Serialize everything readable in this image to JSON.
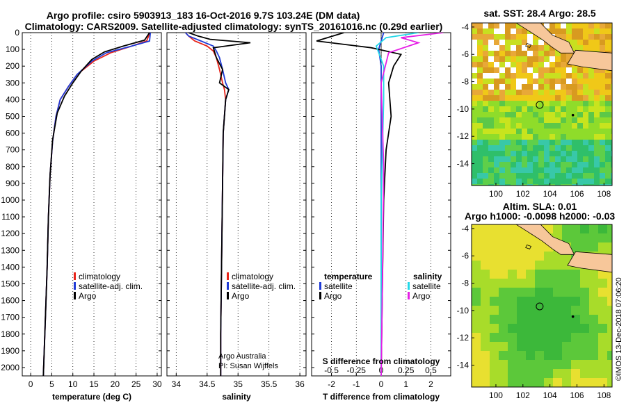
{
  "title_line1": "Argo profile: csiro 5903913_183 16-Oct-2016 9.7S 103.24E (DM data)",
  "title_line2": "Climatology: CARS2009. Satellite-adjusted climatology: synTS_20161016.nc (0.29d earlier)",
  "colors": {
    "climatology": "#e8241a",
    "satellite": "#1f3ad6",
    "argo": "#000000",
    "sal_satellite": "#22d8e8",
    "sal_argo": "#e61ee6"
  },
  "chart_data": [
    {
      "type": "line",
      "xlabel": "temperature (deg C)",
      "ylabel": "",
      "xlim": [
        -2,
        31
      ],
      "ylim": [
        2050,
        0
      ],
      "xticks": [
        0,
        5,
        10,
        15,
        20,
        25,
        30
      ],
      "yticks": [
        0,
        100,
        200,
        300,
        400,
        500,
        600,
        700,
        800,
        900,
        1000,
        1100,
        1200,
        1300,
        1400,
        1500,
        1600,
        1700,
        1800,
        1900,
        2000
      ],
      "legend": [
        "climatology",
        "satellite-adj. clim.",
        "Argo"
      ],
      "series": [
        {
          "name": "climatology",
          "x": [
            28.3,
            27.5,
            24,
            19,
            15,
            11,
            9,
            7,
            6,
            5.2,
            4.6,
            4.2,
            3.9,
            3.5,
            3.0
          ],
          "y": [
            0,
            50,
            80,
            120,
            170,
            250,
            320,
            400,
            500,
            650,
            850,
            1100,
            1400,
            1700,
            2050
          ]
        },
        {
          "name": "satellite-adj. clim.",
          "x": [
            28.4,
            28.2,
            24,
            18,
            14.5,
            11,
            9,
            7,
            6,
            5.2,
            4.6,
            4.2,
            3.9,
            3.5,
            3.0
          ],
          "y": [
            0,
            50,
            80,
            120,
            170,
            250,
            320,
            400,
            500,
            650,
            850,
            1100,
            1400,
            1700,
            2050
          ]
        },
        {
          "name": "Argo",
          "x": [
            28.2,
            27,
            22,
            17.5,
            14.5,
            12,
            10,
            8,
            6.3,
            5.2,
            4.6,
            4.2,
            3.9,
            3.5,
            3.0
          ],
          "y": [
            0,
            45,
            80,
            115,
            160,
            230,
            300,
            380,
            480,
            640,
            850,
            1100,
            1400,
            1700,
            2050
          ]
        }
      ]
    },
    {
      "type": "line",
      "xlabel": "salinity",
      "xlim": [
        33.85,
        36.1
      ],
      "ylim": [
        2050,
        0
      ],
      "xticks": [
        34,
        34.5,
        35,
        35.5,
        36
      ],
      "legend": [
        "climatology",
        "satellite-adj. clim.",
        "Argo"
      ],
      "annotation": [
        "Argo Australia",
        "PI: Susan Wijffels"
      ],
      "series": [
        {
          "name": "climatology",
          "x": [
            34.15,
            34.2,
            34.3,
            34.5,
            34.6,
            34.65,
            34.7,
            34.75,
            34.78,
            34.8,
            34.76,
            34.75,
            34.74,
            34.73,
            34.72,
            34.72
          ],
          "y": [
            0,
            20,
            50,
            80,
            110,
            150,
            220,
            300,
            340,
            400,
            600,
            900,
            1200,
            1500,
            1800,
            2050
          ]
        },
        {
          "name": "satellite-adj. clim.",
          "x": [
            34.15,
            34.2,
            34.4,
            34.6,
            34.65,
            34.7,
            34.75,
            34.8,
            34.85,
            34.8,
            34.76,
            34.75,
            34.74,
            34.73,
            34.72,
            34.72
          ],
          "y": [
            0,
            20,
            50,
            80,
            110,
            150,
            220,
            300,
            340,
            400,
            600,
            900,
            1200,
            1500,
            1800,
            2050
          ]
        },
        {
          "name": "Argo",
          "x": [
            34.2,
            34.35,
            34.55,
            35.2,
            34.6,
            34.65,
            34.75,
            34.7,
            34.85,
            34.8,
            34.76,
            34.75,
            34.74,
            34.73,
            34.72,
            34.72
          ],
          "y": [
            0,
            20,
            40,
            60,
            90,
            150,
            220,
            300,
            340,
            400,
            600,
            900,
            1200,
            1500,
            1800,
            2050
          ]
        }
      ]
    },
    {
      "type": "line",
      "xlabel": "T difference from climatology",
      "xlabel_top": "S difference from climatology",
      "xlim": [
        -2.8,
        2.8
      ],
      "ylim": [
        2050,
        0
      ],
      "xticks": [
        -2,
        -1,
        0,
        1,
        2
      ],
      "xticks_top": [
        "-0.5",
        "-0.25",
        "0",
        "0.25",
        "0.5"
      ],
      "legend_left": [
        "temperature",
        "satellite",
        "Argo"
      ],
      "legend_right": [
        "salinity",
        "satellite",
        "Argo"
      ],
      "series": [
        {
          "name": "temperature satellite",
          "x": [
            0.1,
            0,
            -0.1,
            0,
            0,
            0,
            0,
            0,
            0
          ],
          "y": [
            0,
            50,
            100,
            200,
            400,
            800,
            1200,
            1600,
            2050
          ]
        },
        {
          "name": "temperature Argo",
          "x": [
            -1.5,
            -2.6,
            -0.4,
            0.8,
            0.5,
            0.3,
            0.4,
            0.2,
            0.1,
            0.05,
            0
          ],
          "y": [
            0,
            50,
            90,
            130,
            200,
            300,
            500,
            700,
            1000,
            1500,
            2050
          ]
        },
        {
          "name": "salinity satellite",
          "x": [
            1.5,
            0.2,
            -0.2,
            0.1,
            0.1,
            0,
            0,
            0
          ],
          "y": [
            0,
            30,
            80,
            200,
            400,
            1000,
            1500,
            2050
          ]
        },
        {
          "name": "salinity Argo",
          "x": [
            2.5,
            0.8,
            1.5,
            0.3,
            0,
            0.1,
            0.05,
            0
          ],
          "y": [
            0,
            30,
            60,
            120,
            300,
            800,
            1500,
            2050
          ]
        }
      ]
    }
  ],
  "map_sst": {
    "title": "sat. SST: 28.4 Argo: 28.5",
    "xticks": [
      "100",
      "102",
      "104",
      "106",
      "108"
    ],
    "yticks": [
      "-4",
      "-6",
      "-8",
      "-10",
      "-12",
      "-14"
    ]
  },
  "map_sla": {
    "title_line1": "Altim. SLA: 0.01",
    "title_line2": "Argo h1000: -0.0098 h2000: -0.03",
    "xticks": [
      "100",
      "102",
      "104",
      "106",
      "108"
    ],
    "yticks": [
      "-4",
      "-6",
      "-8",
      "-10",
      "-12",
      "-14"
    ]
  },
  "footer": "©IMOS 13-Dec-2018 07:06:20"
}
